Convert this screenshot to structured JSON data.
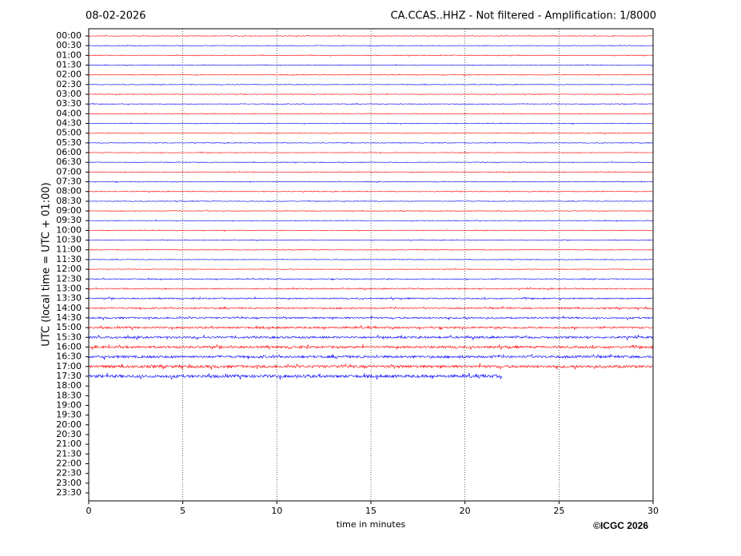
{
  "chart_data": {
    "type": "helicorder",
    "title": "08-02-2026",
    "subtitle": "CA.CCAS..HHZ - Not filtered - Amplification: 1/8000",
    "ylabel": "UTC (local time = UTC + 01:00)",
    "xlabel": "time in minutes",
    "credit": "©ICGC 2026",
    "xlim": [
      0,
      30
    ],
    "xticks": [
      0,
      5,
      10,
      15,
      20,
      25,
      30
    ],
    "grid": true,
    "colors": [
      "#ff0000",
      "#0000ff"
    ],
    "categories": [
      "00:00",
      "00:30",
      "01:00",
      "01:30",
      "02:00",
      "02:30",
      "03:00",
      "03:30",
      "04:00",
      "04:30",
      "05:00",
      "05:30",
      "06:00",
      "06:30",
      "07:00",
      "07:30",
      "08:00",
      "08:30",
      "09:00",
      "09:30",
      "10:00",
      "10:30",
      "11:00",
      "11:30",
      "12:00",
      "12:30",
      "13:00",
      "13:30",
      "14:00",
      "14:30",
      "15:00",
      "15:30",
      "16:00",
      "16:30",
      "17:00",
      "17:30",
      "18:00",
      "18:30",
      "19:00",
      "19:30",
      "20:00",
      "20:30",
      "21:00",
      "21:30",
      "22:00",
      "22:30",
      "23:00",
      "23:30"
    ],
    "values": [
      30,
      30,
      30,
      30,
      30,
      30,
      30,
      30,
      30,
      30,
      30,
      30,
      30,
      30,
      30,
      30,
      30,
      30,
      30,
      30,
      30,
      30,
      30,
      30,
      30,
      30,
      30,
      30,
      30,
      30,
      30,
      30,
      30,
      30,
      30,
      22,
      null,
      null,
      null,
      null,
      null,
      null,
      null,
      null,
      null,
      null,
      null,
      null
    ]
  }
}
